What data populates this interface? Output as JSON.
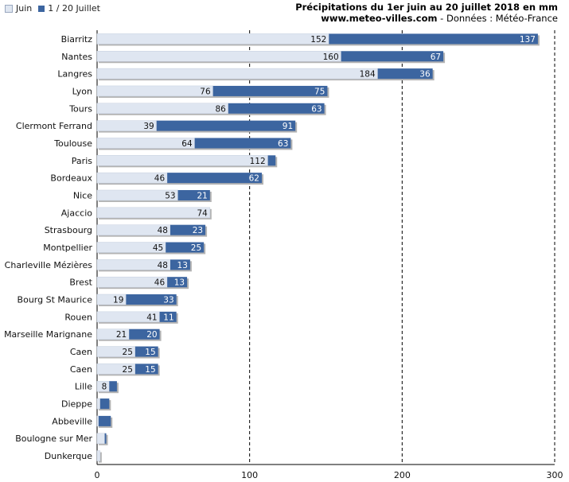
{
  "legend": {
    "items": [
      {
        "label": "Juin",
        "color": "#dfe6f1"
      },
      {
        "label": "1 / 20 Juillet",
        "color": "#3c65a0"
      }
    ]
  },
  "header": {
    "title": "Précipitations du 1er juin au 20 juillet 2018 en mm",
    "site": "www.meteo-villes.com",
    "separator": " - ",
    "source": "Données : Météo-France"
  },
  "colors": {
    "june": "#dfe6f1",
    "july": "#3c65a0",
    "shadow": "#b3b3b3",
    "grid": "#000000"
  },
  "chart_data": {
    "type": "bar",
    "orientation": "horizontal",
    "stacked": true,
    "categories": [
      "Biarritz",
      "Nantes",
      "Langres",
      "Lyon",
      "Tours",
      "Clermont Ferrand",
      "Toulouse",
      "Paris",
      "Bordeaux",
      "Nice",
      "Ajaccio",
      "Strasbourg",
      "Montpellier",
      "Charleville Mézières",
      "Brest",
      "Bourg St Maurice",
      "Rouen",
      "Marseille Marignane",
      "Caen",
      "Caen",
      "Lille",
      "Dieppe",
      "Abbeville",
      "Boulogne sur Mer",
      "Dunkerque"
    ],
    "series": [
      {
        "name": "Juin",
        "values": [
          152,
          160,
          184,
          76,
          86,
          39,
          64,
          112,
          46,
          53,
          74,
          48,
          45,
          48,
          46,
          19,
          41,
          21,
          25,
          25,
          8,
          2,
          1,
          5,
          2
        ]
      },
      {
        "name": "1 / 20 Juillet",
        "values": [
          137,
          67,
          36,
          75,
          63,
          91,
          63,
          5,
          62,
          21,
          0,
          23,
          25,
          13,
          13,
          33,
          11,
          20,
          15,
          15,
          5,
          6,
          8,
          1,
          0
        ]
      }
    ],
    "data_labels": [
      [
        "152",
        "137"
      ],
      [
        "160",
        "67"
      ],
      [
        "184",
        "36"
      ],
      [
        "76",
        "75"
      ],
      [
        "86",
        "63"
      ],
      [
        "39",
        "91"
      ],
      [
        "64",
        "63"
      ],
      [
        "112",
        ""
      ],
      [
        "46",
        "62"
      ],
      [
        "53",
        "21"
      ],
      [
        "74",
        ""
      ],
      [
        "48",
        "23"
      ],
      [
        "45",
        "25"
      ],
      [
        "48",
        "13"
      ],
      [
        "46",
        "13"
      ],
      [
        "19",
        "33"
      ],
      [
        "41",
        "11"
      ],
      [
        "21",
        "20"
      ],
      [
        "25",
        "15"
      ],
      [
        "25",
        "15"
      ],
      [
        "8",
        ""
      ],
      [
        "",
        ""
      ],
      [
        "",
        ""
      ],
      [
        "",
        ""
      ],
      [
        "",
        ""
      ]
    ],
    "xlim": [
      0,
      300
    ],
    "xticks": [
      0,
      100,
      200,
      300
    ],
    "gridlines": [
      100,
      200,
      300
    ],
    "grid_style": "dashed",
    "legend_position": "top-left"
  }
}
